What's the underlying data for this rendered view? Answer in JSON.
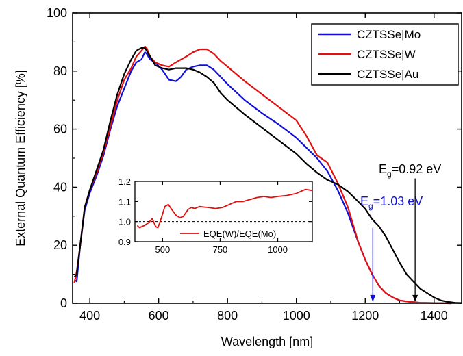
{
  "chart_data": [
    {
      "type": "line",
      "xlabel": "Wavelength [nm]",
      "ylabel": "External Quantum Efficiency [%]",
      "xlim": [
        350,
        1480
      ],
      "ylim": [
        0,
        100
      ],
      "xticks": [
        400,
        600,
        800,
        1000,
        1200,
        1400
      ],
      "yticks": [
        0,
        20,
        40,
        60,
        80,
        100
      ],
      "grid": false,
      "legend_position": "top-right",
      "series": [
        {
          "name": "CZTSSe|Mo",
          "color": "#1010d8",
          "x": [
            355,
            362,
            372,
            385,
            400,
            420,
            440,
            460,
            480,
            500,
            520,
            535,
            550,
            560,
            565,
            575,
            590,
            610,
            630,
            650,
            665,
            680,
            700,
            720,
            740,
            760,
            780,
            800,
            850,
            900,
            950,
            1000,
            1030,
            1060,
            1090,
            1120,
            1150,
            1180,
            1200,
            1220,
            1240,
            1260,
            1280,
            1300,
            1330,
            1360,
            1400,
            1450
          ],
          "y": [
            8,
            7.5,
            20,
            32,
            38,
            44,
            51,
            60,
            68,
            74,
            80,
            83,
            84,
            86.5,
            86,
            84,
            83,
            80.5,
            77,
            76.5,
            78,
            80.5,
            81.5,
            82,
            82,
            80.5,
            78,
            75.5,
            70,
            65.5,
            61.5,
            57,
            53.5,
            50,
            45.5,
            39,
            31,
            21,
            15,
            10,
            6,
            3.5,
            2,
            1,
            0.5,
            0.2,
            0.1,
            0
          ]
        },
        {
          "name": "CZTSSe|W",
          "color": "#e01010",
          "x": [
            355,
            362,
            372,
            385,
            400,
            420,
            440,
            460,
            480,
            500,
            520,
            535,
            550,
            560,
            565,
            575,
            590,
            610,
            630,
            650,
            680,
            700,
            720,
            740,
            760,
            780,
            800,
            850,
            900,
            950,
            1000,
            1030,
            1060,
            1090,
            1120,
            1150,
            1180,
            1200,
            1220,
            1240,
            1260,
            1280,
            1300,
            1330,
            1360,
            1400,
            1450
          ],
          "y": [
            7,
            11,
            20,
            33,
            39,
            45,
            52,
            61,
            70,
            77,
            81,
            85,
            87,
            88.5,
            88,
            85,
            83,
            82,
            81.5,
            83,
            85,
            86.5,
            87.5,
            87.5,
            86,
            83.5,
            81.5,
            76.5,
            72,
            67.5,
            63,
            57.5,
            51,
            48.5,
            41.5,
            33,
            21,
            15,
            10,
            6,
            3.5,
            2,
            1,
            0.5,
            0.2,
            0.1,
            0
          ]
        },
        {
          "name": "CZTSSe|Au",
          "color": "#000000",
          "x": [
            355,
            362,
            372,
            385,
            400,
            420,
            440,
            460,
            480,
            500,
            520,
            535,
            550,
            560,
            565,
            575,
            590,
            610,
            630,
            650,
            680,
            700,
            720,
            740,
            760,
            780,
            800,
            850,
            900,
            950,
            1000,
            1030,
            1060,
            1090,
            1120,
            1150,
            1180,
            1200,
            1220,
            1240,
            1260,
            1280,
            1300,
            1320,
            1340,
            1360,
            1380,
            1400,
            1420,
            1440,
            1460,
            1480
          ],
          "y": [
            9,
            10,
            20,
            33,
            39,
            46,
            53,
            63,
            72,
            79,
            84,
            87,
            88,
            88,
            87,
            85,
            82,
            81,
            80.5,
            81,
            81,
            80.5,
            79.5,
            78,
            76,
            72.5,
            70,
            65,
            60.5,
            56,
            51.5,
            48,
            45,
            42.5,
            41,
            38.5,
            35,
            32.5,
            29,
            26.5,
            23,
            18.5,
            14,
            10,
            7.5,
            5,
            3.5,
            2,
            1,
            0.5,
            0.2,
            0.1
          ]
        }
      ],
      "annotations": [
        {
          "main": "E",
          "sub": "g",
          "rest": "=1.03 eV",
          "color": "#1010d8",
          "arrow_x": 1222,
          "arrow_from_y": 26,
          "arrow_to_y": 0.5
        },
        {
          "main": "E",
          "sub": "g",
          "rest": "=0.92 eV",
          "color": "#000000",
          "arrow_x": 1345,
          "arrow_from_y": 43,
          "arrow_to_y": 0.5
        }
      ]
    },
    {
      "type": "line",
      "xlabel": "",
      "ylabel": "",
      "xlim": [
        380,
        1150
      ],
      "ylim": [
        0.9,
        1.2
      ],
      "xticks": [
        500,
        750,
        1000
      ],
      "xtick_labels": [
        "500",
        "750",
        "1000"
      ],
      "yticks": [
        0.9,
        1.0,
        1.1,
        1.2
      ],
      "ytick_labels": [
        "0.9",
        "1.0",
        "1.1",
        "1.2"
      ],
      "reference_line": 1.0,
      "legend_position": "bottom-right",
      "series": [
        {
          "name": "EQE(W)/EQE(Mo)",
          "color": "#e01010",
          "x": [
            390,
            400,
            420,
            440,
            455,
            470,
            480,
            495,
            510,
            525,
            540,
            560,
            575,
            590,
            610,
            625,
            640,
            660,
            680,
            700,
            730,
            760,
            790,
            820,
            850,
            880,
            910,
            940,
            970,
            1000,
            1040,
            1080,
            1120,
            1150
          ],
          "y": [
            0.98,
            0.97,
            0.98,
            0.995,
            1.015,
            0.975,
            0.97,
            1.02,
            1.075,
            1.085,
            1.06,
            1.03,
            1.02,
            1.025,
            1.06,
            1.07,
            1.065,
            1.075,
            1.072,
            1.07,
            1.065,
            1.07,
            1.085,
            1.1,
            1.1,
            1.11,
            1.12,
            1.125,
            1.12,
            1.125,
            1.13,
            1.14,
            1.16,
            1.155
          ]
        }
      ]
    }
  ]
}
